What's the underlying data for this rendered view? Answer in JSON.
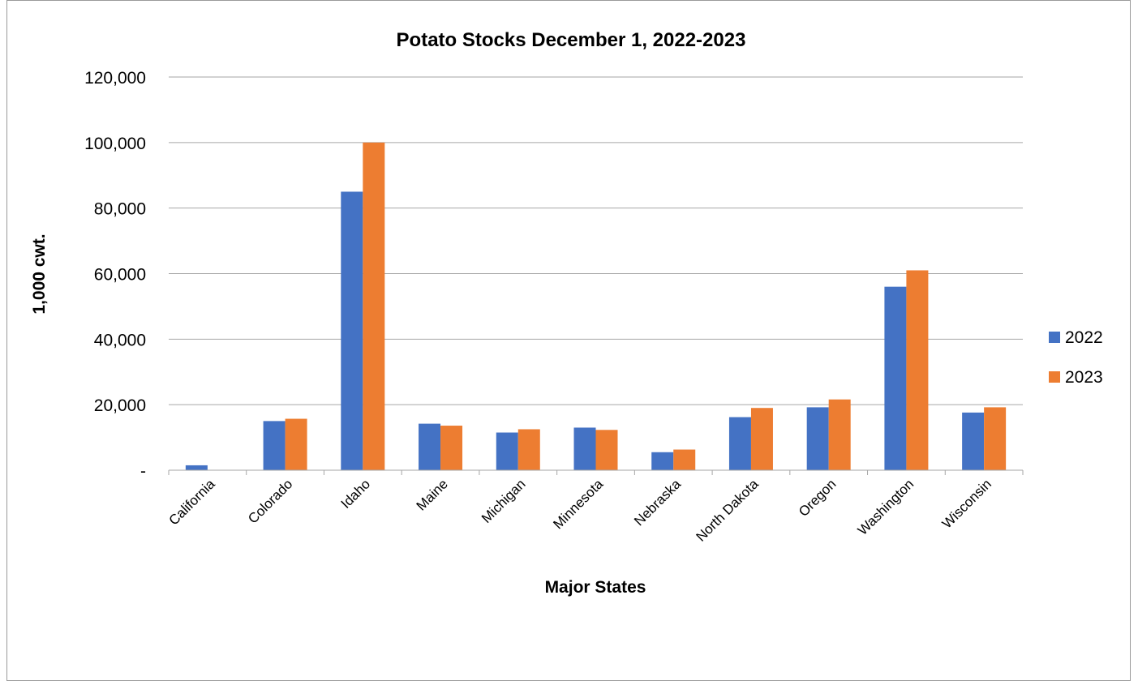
{
  "colors": {
    "series_2022": "#4472C4",
    "series_2023": "#ED7D31",
    "gridline": "#a6a6a6",
    "axis": "#a6a6a6"
  },
  "chart_data": {
    "type": "bar",
    "title": "Potato Stocks December 1, 2022-2023",
    "xlabel": "Major States",
    "ylabel": "1,000 cwt.",
    "categories": [
      "California",
      "Colorado",
      "Idaho",
      "Maine",
      "Michigan",
      "Minnesota",
      "Nebraska",
      "North Dakota",
      "Oregon",
      "Washington",
      "Wisconsin"
    ],
    "series": [
      {
        "name": "2022",
        "values": [
          1500,
          15000,
          85000,
          14200,
          11500,
          13000,
          5500,
          16200,
          19200,
          56000,
          17600
        ]
      },
      {
        "name": "2023",
        "values": [
          0,
          15700,
          100000,
          13600,
          12500,
          12300,
          6300,
          19000,
          21600,
          61000,
          19200
        ]
      }
    ],
    "ylim": [
      0,
      120000
    ],
    "yticks": [
      0,
      20000,
      40000,
      60000,
      80000,
      100000,
      120000
    ],
    "ytick_labels": [
      "-",
      "20,000",
      "40,000",
      "60,000",
      "80,000",
      "100,000",
      "120,000"
    ],
    "grid": true,
    "legend_position": "right"
  }
}
